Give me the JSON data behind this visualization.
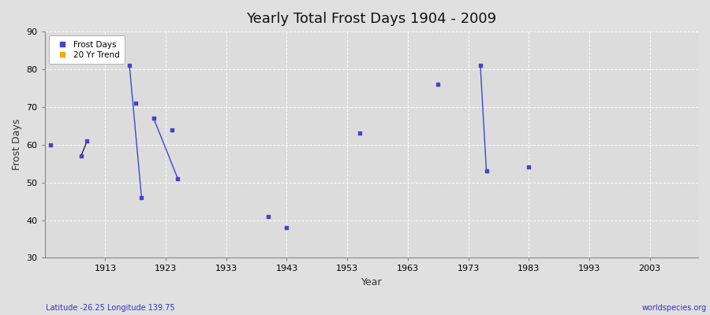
{
  "title": "Yearly Total Frost Days 1904 - 2009",
  "xlabel": "Year",
  "ylabel": "Frost Days",
  "xlim": [
    1903,
    2011
  ],
  "ylim": [
    30,
    90
  ],
  "yticks": [
    30,
    40,
    50,
    60,
    70,
    80,
    90
  ],
  "xticks": [
    1913,
    1923,
    1933,
    1943,
    1953,
    1963,
    1973,
    1983,
    1993,
    2003
  ],
  "fig_bg_color": "#e0e0e0",
  "plot_bg_color": "#dcdcdc",
  "grid_color": "#ffffff",
  "frost_color": "#4444cc",
  "trend_color": "#ffa500",
  "bottom_left_text": "Latitude -26.25 Longitude 139.75",
  "bottom_right_text": "worldspecies.org",
  "frost_data": [
    [
      1904,
      60
    ],
    [
      1909,
      57
    ],
    [
      1910,
      61
    ],
    [
      1917,
      81
    ],
    [
      1918,
      71
    ],
    [
      1919,
      46
    ],
    [
      1921,
      67
    ],
    [
      1924,
      64
    ],
    [
      1925,
      51
    ],
    [
      1940,
      41
    ],
    [
      1943,
      38
    ],
    [
      1955,
      63
    ],
    [
      1968,
      76
    ],
    [
      1975,
      81
    ],
    [
      1976,
      53
    ],
    [
      1983,
      54
    ]
  ],
  "blue_lines": [
    [
      [
        1917,
        81
      ],
      [
        1919,
        46
      ]
    ],
    [
      [
        1921,
        67
      ],
      [
        1925,
        51
      ]
    ],
    [
      [
        1975,
        81
      ],
      [
        1976,
        53
      ]
    ]
  ],
  "black_lines": [
    [
      [
        1909,
        57
      ],
      [
        1910,
        61
      ]
    ]
  ]
}
